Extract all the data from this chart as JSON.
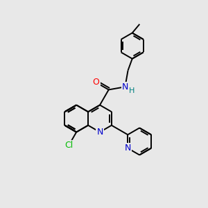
{
  "background_color": "#e8e8e8",
  "bond_color": "#000000",
  "atom_colors": {
    "N": "#0000cc",
    "O": "#ff0000",
    "Cl": "#00bb00",
    "H": "#008080",
    "C": "#000000"
  },
  "line_width": 1.4,
  "font_size": 9,
  "figsize": [
    3.0,
    3.0
  ],
  "dpi": 100,
  "xlim": [
    0,
    10
  ],
  "ylim": [
    0,
    10
  ]
}
